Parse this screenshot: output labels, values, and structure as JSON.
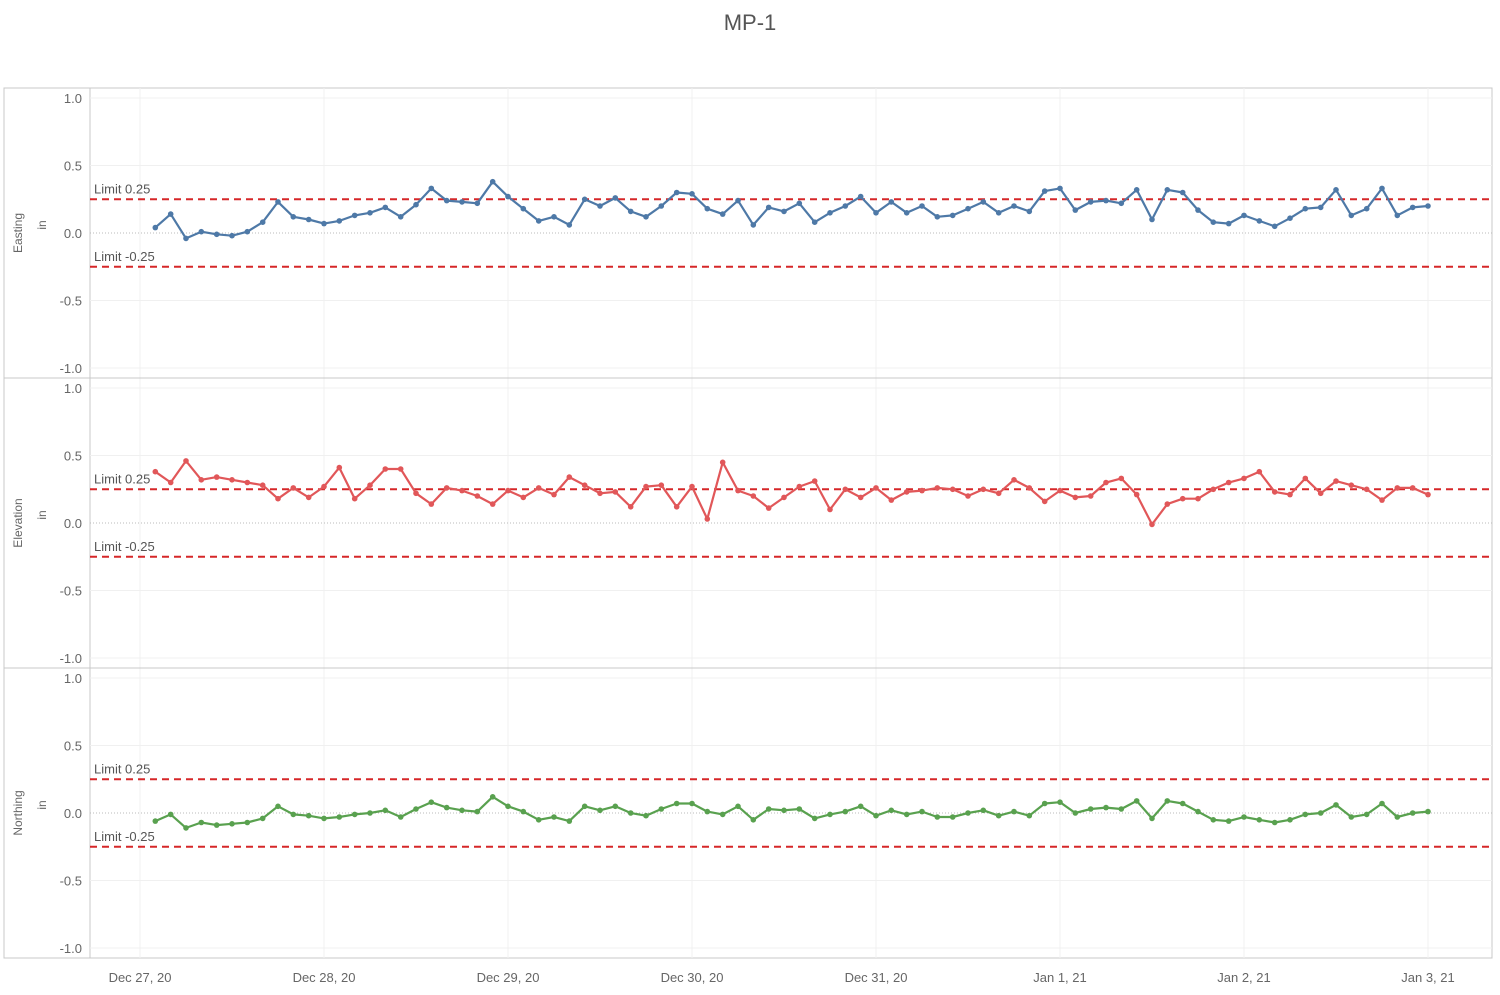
{
  "title": "MP-1",
  "colors": {
    "easting": "#4e79a7",
    "elevation": "#e15759",
    "northing": "#59a14f",
    "limit": "#d62728"
  },
  "chart_data": {
    "type": "line",
    "title": "MP-1",
    "x_ticks": [
      "Dec 27, 20",
      "Dec 28, 20",
      "Dec 29, 20",
      "Dec 30, 20",
      "Dec 31, 20",
      "Jan 1, 21",
      "Jan 2, 21",
      "Jan 3, 21"
    ],
    "x_range": [
      "Dec 27, 2020",
      "Jan 3, 2021"
    ],
    "ylim": [
      -1.0,
      1.0
    ],
    "y_ticks": [
      "1.0",
      "0.5",
      "0.0",
      "-0.5",
      "-1.0"
    ],
    "unit": "in",
    "limits": [
      {
        "label": "Limit 0.25",
        "value": 0.25
      },
      {
        "label": "Limit -0.25",
        "value": -0.25
      }
    ],
    "x_start": "Dec 27, 2020 02:00",
    "x_step_hours": 2,
    "panels": [
      {
        "name": "Easting",
        "color": "#4e79a7",
        "values": [
          0.04,
          0.14,
          -0.04,
          0.01,
          -0.01,
          -0.02,
          0.01,
          0.08,
          0.23,
          0.12,
          0.1,
          0.07,
          0.09,
          0.13,
          0.15,
          0.19,
          0.12,
          0.21,
          0.33,
          0.24,
          0.23,
          0.22,
          0.38,
          0.27,
          0.18,
          0.09,
          0.12,
          0.06,
          0.25,
          0.2,
          0.26,
          0.16,
          0.12,
          0.2,
          0.3,
          0.29,
          0.18,
          0.14,
          0.24,
          0.06,
          0.19,
          0.16,
          0.22,
          0.08,
          0.15,
          0.2,
          0.27,
          0.15,
          0.23,
          0.15,
          0.2,
          0.12,
          0.13,
          0.18,
          0.23,
          0.15,
          0.2,
          0.16,
          0.31,
          0.33,
          0.17,
          0.23,
          0.24,
          0.22,
          0.32,
          0.1,
          0.32,
          0.3,
          0.17,
          0.08,
          0.07,
          0.13,
          0.09,
          0.05,
          0.11,
          0.18,
          0.19,
          0.32,
          0.13,
          0.18,
          0.33,
          0.13,
          0.19,
          0.2
        ]
      },
      {
        "name": "Elevation",
        "color": "#e15759",
        "values": [
          0.38,
          0.3,
          0.46,
          0.32,
          0.34,
          0.32,
          0.3,
          0.28,
          0.18,
          0.26,
          0.19,
          0.27,
          0.41,
          0.18,
          0.28,
          0.4,
          0.4,
          0.22,
          0.14,
          0.26,
          0.24,
          0.2,
          0.14,
          0.24,
          0.19,
          0.26,
          0.21,
          0.34,
          0.28,
          0.22,
          0.23,
          0.12,
          0.27,
          0.28,
          0.12,
          0.27,
          0.03,
          0.45,
          0.24,
          0.2,
          0.11,
          0.19,
          0.27,
          0.31,
          0.1,
          0.25,
          0.19,
          0.26,
          0.17,
          0.23,
          0.24,
          0.26,
          0.25,
          0.2,
          0.25,
          0.22,
          0.32,
          0.26,
          0.16,
          0.24,
          0.19,
          0.2,
          0.3,
          0.33,
          0.21,
          -0.01,
          0.14,
          0.18,
          0.18,
          0.25,
          0.3,
          0.33,
          0.38,
          0.23,
          0.21,
          0.33,
          0.22,
          0.31,
          0.28,
          0.25,
          0.17,
          0.26,
          0.26,
          0.21
        ]
      },
      {
        "name": "Northing",
        "color": "#59a14f",
        "values": [
          -0.06,
          -0.01,
          -0.11,
          -0.07,
          -0.09,
          -0.08,
          -0.07,
          -0.04,
          0.05,
          -0.01,
          -0.02,
          -0.04,
          -0.03,
          -0.01,
          0.0,
          0.02,
          -0.03,
          0.03,
          0.08,
          0.04,
          0.02,
          0.01,
          0.12,
          0.05,
          0.01,
          -0.05,
          -0.03,
          -0.06,
          0.05,
          0.02,
          0.05,
          0.0,
          -0.02,
          0.03,
          0.07,
          0.07,
          0.01,
          -0.01,
          0.05,
          -0.05,
          0.03,
          0.02,
          0.03,
          -0.04,
          -0.01,
          0.01,
          0.05,
          -0.02,
          0.02,
          -0.01,
          0.01,
          -0.03,
          -0.03,
          0.0,
          0.02,
          -0.02,
          0.01,
          -0.02,
          0.07,
          0.08,
          0.0,
          0.03,
          0.04,
          0.03,
          0.09,
          -0.04,
          0.09,
          0.07,
          0.01,
          -0.05,
          -0.06,
          -0.03,
          -0.05,
          -0.07,
          -0.05,
          -0.01,
          0.0,
          0.06,
          -0.03,
          -0.01,
          0.07,
          -0.03,
          0.0,
          0.01
        ]
      }
    ]
  }
}
